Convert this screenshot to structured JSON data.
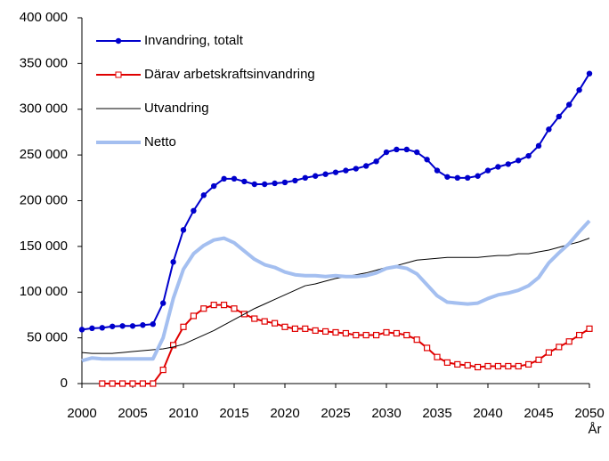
{
  "chart_data": {
    "type": "line",
    "x_label": "År",
    "x": [
      2000,
      2001,
      2002,
      2003,
      2004,
      2005,
      2006,
      2007,
      2008,
      2009,
      2010,
      2011,
      2012,
      2013,
      2014,
      2015,
      2016,
      2017,
      2018,
      2019,
      2020,
      2021,
      2022,
      2023,
      2024,
      2025,
      2026,
      2027,
      2028,
      2029,
      2030,
      2031,
      2032,
      2033,
      2034,
      2035,
      2036,
      2037,
      2038,
      2039,
      2040,
      2041,
      2042,
      2043,
      2044,
      2045,
      2046,
      2047,
      2048,
      2049,
      2050
    ],
    "xlim": [
      2000,
      2050
    ],
    "xticks": [
      2000,
      2005,
      2010,
      2015,
      2020,
      2025,
      2030,
      2035,
      2040,
      2045,
      2050
    ],
    "ylim": [
      0,
      400000
    ],
    "yticks": [
      0,
      {
        "value": 50000,
        "label": "50 000"
      },
      {
        "value": 100000,
        "label": "100 000"
      },
      {
        "value": 150000,
        "label": "150 000"
      },
      {
        "value": 200000,
        "label": "200 000"
      },
      {
        "value": 250000,
        "label": "250 000"
      },
      {
        "value": 300000,
        "label": "300 000"
      },
      {
        "value": 350000,
        "label": "350 000"
      },
      {
        "value": 400000,
        "label": "400 000"
      }
    ],
    "grid": false,
    "legend": "upper-left",
    "series": [
      {
        "name": "Invandring, totalt",
        "color": "#0000cc",
        "marker": "circle",
        "width": 2,
        "values": [
          59000,
          60500,
          61000,
          62500,
          63000,
          63000,
          64000,
          65000,
          88000,
          133000,
          168000,
          189000,
          206000,
          216000,
          224000,
          224000,
          221000,
          218000,
          218000,
          219000,
          220000,
          222000,
          225000,
          227000,
          229000,
          231000,
          233000,
          235000,
          238000,
          243000,
          253000,
          256000,
          256000,
          253000,
          245000,
          233000,
          226000,
          225000,
          225000,
          227000,
          233000,
          237000,
          240000,
          244000,
          249000,
          260000,
          278000,
          292000,
          305000,
          321000,
          339000
        ]
      },
      {
        "name": "Därav arbetskraftsinvandring",
        "color": "#e00000",
        "marker": "square",
        "width": 2,
        "values": [
          null,
          null,
          0,
          0,
          0,
          0,
          0,
          0,
          15000,
          42000,
          62000,
          74000,
          82000,
          86000,
          86000,
          82000,
          76000,
          71000,
          68000,
          66000,
          62000,
          60000,
          60000,
          58000,
          57000,
          56000,
          55000,
          53000,
          53000,
          53000,
          56000,
          55000,
          53000,
          48000,
          39000,
          29000,
          23000,
          21000,
          20000,
          18000,
          19000,
          19000,
          19000,
          19000,
          21000,
          26000,
          34000,
          40000,
          46000,
          53000,
          60000
        ]
      },
      {
        "name": "Utvandring",
        "color": "#000000",
        "marker": "none",
        "width": 1,
        "values": [
          34000,
          33000,
          33000,
          33000,
          34000,
          35000,
          36000,
          37000,
          38000,
          40000,
          43000,
          48000,
          53000,
          58000,
          64000,
          70000,
          76000,
          82000,
          87000,
          92000,
          97000,
          102000,
          107000,
          109000,
          112000,
          115000,
          117000,
          119000,
          121000,
          124000,
          127000,
          129000,
          132000,
          135000,
          136000,
          137000,
          138000,
          138000,
          138000,
          138000,
          139000,
          140000,
          140000,
          142000,
          142000,
          144000,
          146000,
          149000,
          152000,
          155000,
          159000
        ]
      },
      {
        "name": "Netto",
        "color": "#a4bff0",
        "marker": "none",
        "width": 4,
        "values": [
          25000,
          28000,
          27000,
          27000,
          27000,
          27000,
          27000,
          27000,
          50000,
          93000,
          125000,
          142000,
          151000,
          157000,
          159000,
          154000,
          145000,
          136000,
          130000,
          127000,
          122000,
          119000,
          118000,
          118000,
          117000,
          118000,
          117000,
          117000,
          118000,
          121000,
          126000,
          128000,
          126000,
          120000,
          108000,
          96000,
          89000,
          88000,
          87000,
          88000,
          93000,
          97000,
          99000,
          102000,
          107000,
          116000,
          132000,
          143000,
          153000,
          166000,
          178000
        ]
      }
    ]
  }
}
